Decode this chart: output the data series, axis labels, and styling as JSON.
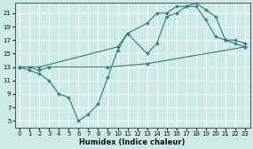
{
  "xlabel": "Humidex (Indice chaleur)",
  "bg_color": "#cceaea",
  "grid_color": "#ffffff",
  "line_color": "#2e7d72",
  "xlim": [
    -0.5,
    23.5
  ],
  "ylim": [
    4,
    22.5
  ],
  "yticks": [
    5,
    7,
    9,
    11,
    13,
    15,
    17,
    19,
    21
  ],
  "xticks": [
    0,
    1,
    2,
    3,
    4,
    5,
    6,
    7,
    8,
    9,
    10,
    11,
    12,
    13,
    14,
    15,
    16,
    17,
    18,
    19,
    20,
    21,
    22,
    23
  ],
  "line1_x": [
    0,
    1,
    2,
    3,
    9,
    13,
    23
  ],
  "line1_y": [
    13,
    13,
    12.5,
    13,
    13,
    13.5,
    16
  ],
  "line2_x": [
    0,
    1,
    2,
    3,
    4,
    5,
    6,
    7,
    8,
    9,
    10,
    11,
    13,
    14,
    15,
    16,
    17,
    18,
    19,
    20,
    21,
    22,
    23
  ],
  "line2_y": [
    13,
    12.5,
    12,
    11,
    9,
    8.5,
    5,
    6,
    7.5,
    11.5,
    15.5,
    18,
    15,
    16.5,
    20.5,
    21,
    22,
    22,
    20,
    17.5,
    17,
    16.5,
    16
  ],
  "line3_x": [
    0,
    2,
    10,
    11,
    13,
    14,
    15,
    16,
    17,
    18,
    19,
    20,
    21,
    22,
    23
  ],
  "line3_y": [
    13,
    13,
    16,
    18,
    19.5,
    21,
    21,
    22,
    22,
    22.5,
    21.5,
    20.5,
    17,
    17,
    16.5
  ]
}
